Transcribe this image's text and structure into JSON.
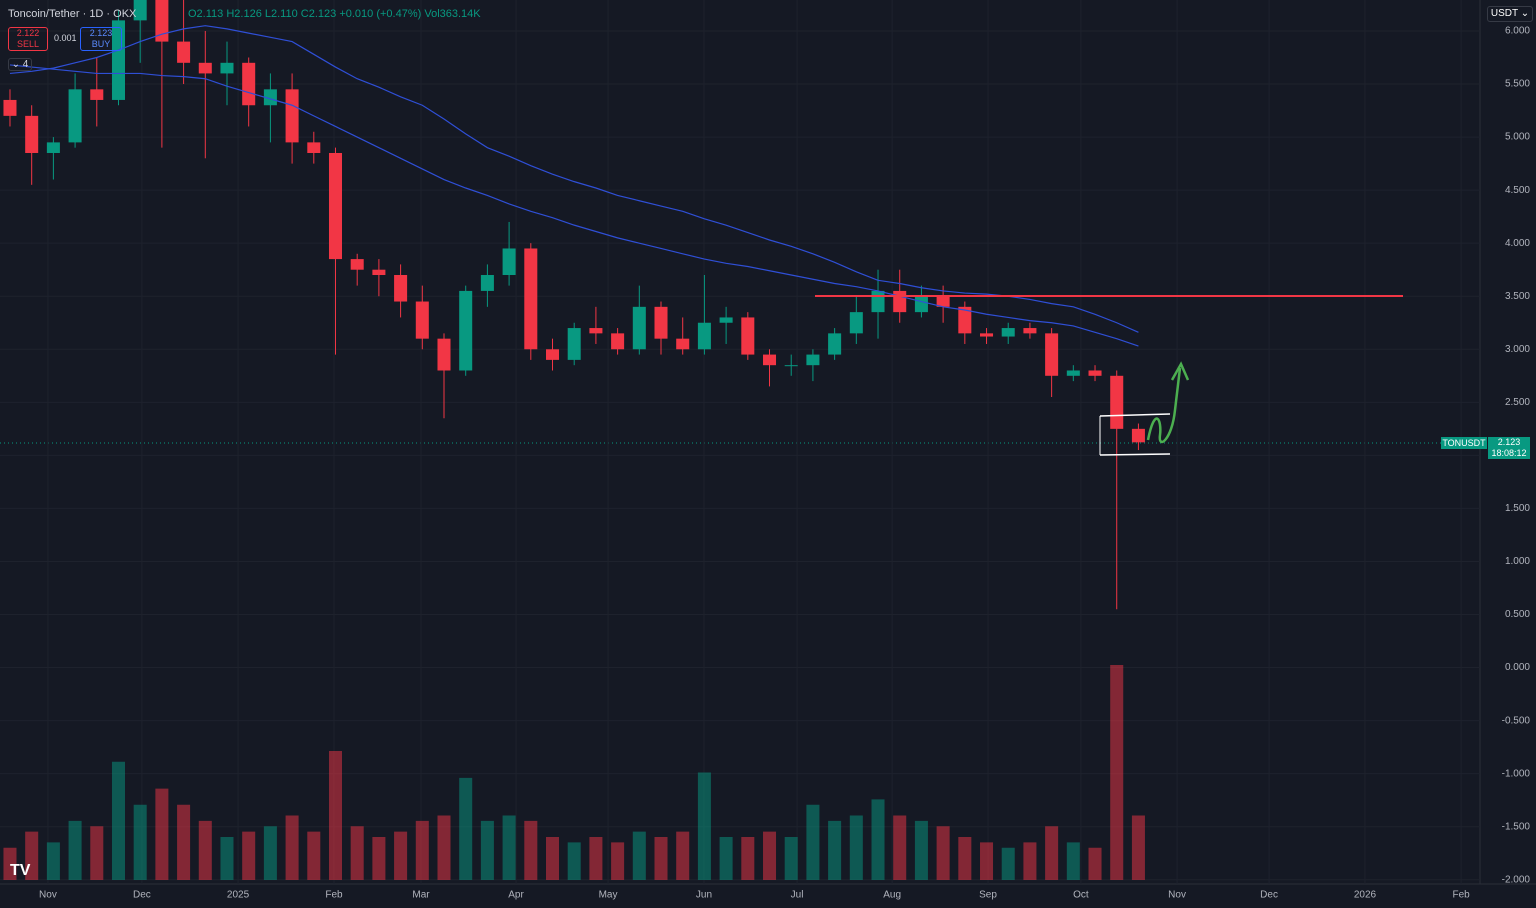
{
  "header": {
    "symbol": "Toncoin/Tether · 1D · OKX",
    "open": "O2.113",
    "high": "H2.126",
    "low": "L2.110",
    "close": "C2.123",
    "change": "+0.010 (+0.47%)",
    "volume": "Vol363.14K",
    "sell_price": "2.122",
    "sell": "SELL",
    "spread": "0.001",
    "buy_price": "2.123",
    "buy": "BUY",
    "indicators": "4",
    "currency": "USDT",
    "tag_symbol": "TONUSDT",
    "tag_price": "2.123",
    "tag_time": "18:08:12"
  },
  "chart_data": {
    "type": "candlestick",
    "up_color": "#089981",
    "down_color": "#f23645",
    "ma_color": "#2f4fd6",
    "grid": true,
    "categories": [
      null,
      null,
      null,
      null,
      null,
      null,
      null,
      null,
      null,
      null,
      null,
      null,
      null,
      null,
      null,
      null,
      null,
      null,
      null,
      null,
      null,
      null,
      null,
      null,
      null,
      null,
      null,
      null,
      null,
      null,
      null,
      null,
      null,
      null,
      null,
      null,
      null,
      null,
      null,
      null,
      null,
      null,
      null,
      null,
      null,
      null,
      null,
      null,
      null,
      null,
      null,
      null,
      null
    ],
    "open": [
      5.35,
      5.2,
      4.85,
      4.95,
      5.45,
      5.35,
      6.1,
      6.3,
      5.9,
      5.7,
      5.6,
      5.7,
      5.3,
      5.45,
      4.95,
      4.85,
      3.85,
      3.75,
      3.7,
      3.45,
      3.1,
      2.8,
      3.55,
      3.7,
      3.95,
      3.0,
      2.9,
      3.2,
      3.15,
      3.0,
      3.4,
      3.1,
      3.0,
      3.25,
      3.3,
      2.95,
      2.85,
      2.85,
      2.95,
      3.15,
      3.35,
      3.55,
      3.35,
      3.5,
      3.4,
      3.15,
      3.12,
      3.2,
      3.15,
      2.75,
      2.8,
      2.75,
      2.25
    ],
    "high": [
      5.45,
      5.3,
      5.0,
      5.6,
      5.75,
      6.2,
      6.5,
      6.6,
      6.3,
      6.0,
      5.9,
      5.75,
      5.6,
      5.6,
      5.05,
      4.9,
      3.9,
      3.85,
      3.8,
      3.6,
      3.15,
      3.6,
      3.8,
      4.2,
      4.0,
      3.1,
      3.25,
      3.4,
      3.2,
      3.6,
      3.45,
      3.3,
      3.7,
      3.4,
      3.35,
      3.0,
      2.95,
      3.0,
      3.2,
      3.5,
      3.75,
      3.75,
      3.6,
      3.6,
      3.45,
      3.2,
      3.25,
      3.25,
      3.2,
      2.85,
      2.85,
      2.8,
      2.3
    ],
    "low": [
      5.1,
      4.55,
      4.6,
      4.9,
      5.1,
      5.3,
      5.7,
      4.9,
      5.5,
      4.8,
      5.3,
      5.1,
      4.95,
      4.75,
      4.75,
      2.95,
      3.6,
      3.5,
      3.3,
      3.0,
      2.35,
      2.75,
      3.4,
      3.6,
      2.9,
      2.8,
      2.85,
      3.05,
      2.95,
      2.95,
      2.95,
      2.95,
      2.95,
      3.05,
      2.9,
      2.65,
      2.75,
      2.7,
      2.9,
      3.05,
      3.1,
      3.25,
      3.3,
      3.25,
      3.05,
      3.05,
      3.05,
      3.1,
      2.55,
      2.7,
      2.7,
      0.55,
      2.05
    ],
    "close": [
      5.2,
      4.85,
      4.95,
      5.45,
      5.35,
      6.1,
      6.3,
      5.9,
      5.7,
      5.6,
      5.7,
      5.3,
      5.45,
      4.95,
      4.85,
      3.85,
      3.75,
      3.7,
      3.45,
      3.1,
      2.8,
      3.55,
      3.7,
      3.95,
      3.0,
      2.9,
      3.2,
      3.15,
      3.0,
      3.4,
      3.1,
      3.0,
      3.25,
      3.3,
      2.95,
      2.85,
      2.85,
      2.95,
      3.15,
      3.35,
      3.55,
      3.35,
      3.5,
      3.4,
      3.15,
      3.12,
      3.2,
      3.15,
      2.75,
      2.8,
      2.75,
      2.25,
      2.123
    ],
    "volume": [
      30,
      45,
      35,
      55,
      50,
      110,
      70,
      85,
      70,
      55,
      40,
      45,
      50,
      60,
      45,
      120,
      50,
      40,
      45,
      55,
      60,
      95,
      55,
      60,
      55,
      40,
      35,
      40,
      35,
      45,
      40,
      45,
      100,
      40,
      40,
      45,
      40,
      70,
      55,
      60,
      75,
      60,
      55,
      50,
      40,
      35,
      30,
      35,
      50,
      35,
      30,
      200,
      60
    ],
    "series": [
      {
        "values": [
          5.6,
          5.62,
          5.65,
          5.7,
          5.75,
          5.82,
          5.9,
          5.97,
          6.02,
          6.05,
          6.02,
          5.98,
          5.94,
          5.9,
          5.78,
          5.66,
          5.55,
          5.47,
          5.38,
          5.3,
          5.17,
          5.03,
          4.9,
          4.82,
          4.73,
          4.65,
          4.58,
          4.52,
          4.45,
          4.4,
          4.35,
          4.3,
          4.23,
          4.17,
          4.1,
          4.03,
          3.97,
          3.9,
          3.82,
          3.73,
          3.65,
          3.62,
          3.58,
          3.55,
          3.53,
          3.52,
          3.5,
          3.47,
          3.43,
          3.4,
          3.33,
          3.25,
          3.16
        ]
      },
      {
        "values": [
          5.68,
          5.66,
          5.64,
          5.62,
          5.6,
          5.6,
          5.6,
          5.58,
          5.57,
          5.55,
          5.48,
          5.42,
          5.36,
          5.3,
          5.2,
          5.1,
          5.0,
          4.9,
          4.8,
          4.7,
          4.6,
          4.52,
          4.45,
          4.37,
          4.3,
          4.24,
          4.17,
          4.11,
          4.05,
          4.0,
          3.95,
          3.9,
          3.85,
          3.81,
          3.78,
          3.74,
          3.7,
          3.66,
          3.62,
          3.59,
          3.55,
          3.5,
          3.45,
          3.4,
          3.37,
          3.33,
          3.3,
          3.27,
          3.25,
          3.22,
          3.16,
          3.1,
          3.03
        ]
      }
    ],
    "xlim": [
      -0.46,
      67.74
    ],
    "xticks": [
      {
        "value": 1.75,
        "label": "Nov"
      },
      {
        "value": 6.08,
        "label": "Dec"
      },
      {
        "value": 10.51,
        "label": "2025"
      },
      {
        "value": 14.93,
        "label": "Feb"
      },
      {
        "value": 18.94,
        "label": "Mar"
      },
      {
        "value": 23.32,
        "label": "Apr"
      },
      {
        "value": 27.56,
        "label": "May"
      },
      {
        "value": 31.98,
        "label": "Jun"
      },
      {
        "value": 36.27,
        "label": "Jul"
      },
      {
        "value": 40.65,
        "label": "Aug"
      },
      {
        "value": 45.07,
        "label": "Sep"
      },
      {
        "value": 49.35,
        "label": "Oct"
      },
      {
        "value": 53.78,
        "label": "Nov"
      },
      {
        "value": 58.02,
        "label": "Dec"
      },
      {
        "value": 62.44,
        "label": "2026"
      },
      {
        "value": 66.87,
        "label": "Feb"
      }
    ],
    "ylim": [
      -2.04,
      6.292
    ],
    "yticks": [
      {
        "value": 6,
        "label": "6.000"
      },
      {
        "value": 5.5,
        "label": "5.500"
      },
      {
        "value": 5,
        "label": "5.000"
      },
      {
        "value": 4.5,
        "label": "4.500"
      },
      {
        "value": 4,
        "label": "4.000"
      },
      {
        "value": 3.5,
        "label": "3.500"
      },
      {
        "value": 3,
        "label": "3.000"
      },
      {
        "value": 2.5,
        "label": "2.500"
      },
      {
        "value": 2,
        "label": "2.000"
      },
      {
        "value": 1.5,
        "label": "1.500"
      },
      {
        "value": 1,
        "label": "1.000"
      },
      {
        "value": 0.5,
        "label": "0.500"
      },
      {
        "value": 0,
        "label": "0.000"
      },
      {
        "value": -0.5,
        "label": "-0.500"
      },
      {
        "value": -1,
        "label": "-1.000"
      },
      {
        "value": -1.5,
        "label": "-1.500"
      },
      {
        "value": -2,
        "label": "-2.000"
      }
    ]
  }
}
